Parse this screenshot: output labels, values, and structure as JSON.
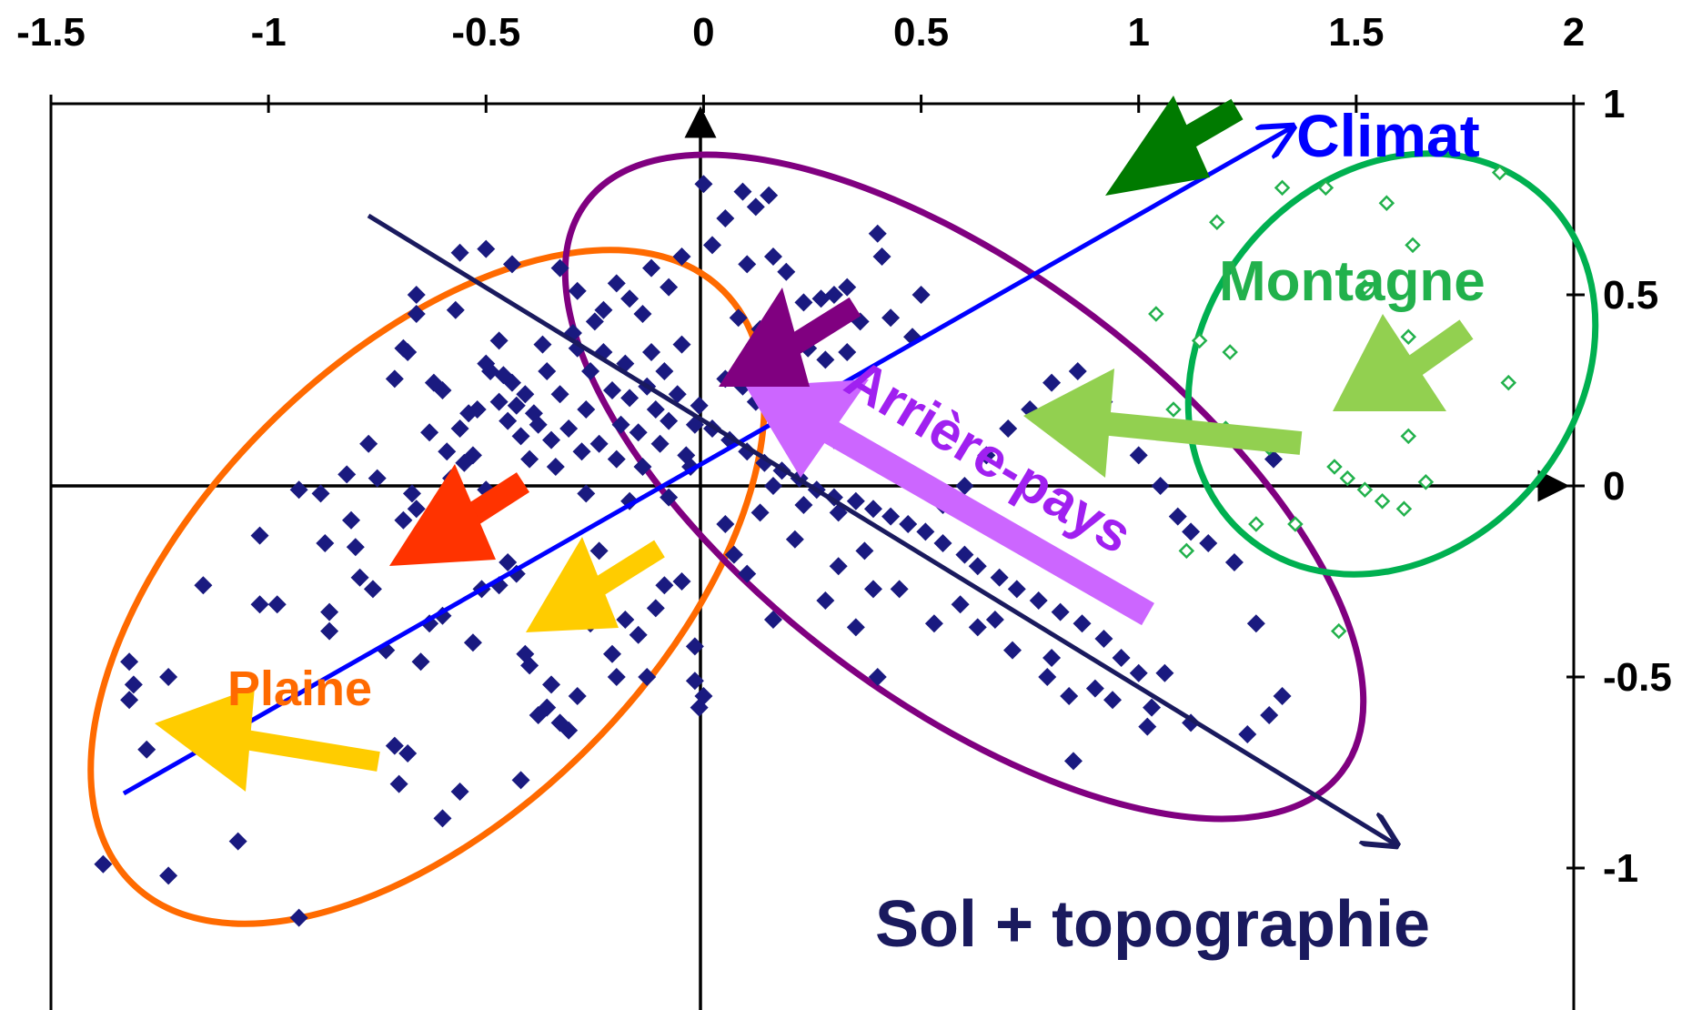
{
  "chart_data": {
    "type": "scatter",
    "title": "",
    "xlabel": "",
    "ylabel": "",
    "xlim": [
      -1.5,
      2
    ],
    "ylim": [
      -1.4,
      1
    ],
    "x_ticks": [
      -1.5,
      -1,
      -0.5,
      0,
      0.5,
      1,
      1.5,
      2
    ],
    "x_tick_labels": [
      "-1.5",
      "-1",
      "-0.5",
      "0",
      "0.5",
      "1",
      "1.5",
      "2"
    ],
    "y_ticks": [
      1,
      0.5,
      0,
      -0.5,
      -1
    ],
    "y_tick_labels": [
      "1",
      "0.5",
      "0",
      "-0.5",
      "-1"
    ],
    "x_axis_position": "top",
    "y_axis_position": "right",
    "grid": false,
    "series": [
      {
        "marker": "filled-diamond",
        "color": "#1a1a80",
        "points": [
          [
            -1.38,
            -0.99
          ],
          [
            -1.23,
            -1.02
          ],
          [
            -1.07,
            -0.93
          ],
          [
            -0.93,
            -1.13
          ],
          [
            -1.32,
            -0.56
          ],
          [
            -1.31,
            -0.52
          ],
          [
            -1.32,
            -0.46
          ],
          [
            -1.23,
            -0.5
          ],
          [
            -1.28,
            -0.69
          ],
          [
            -1.15,
            -0.26
          ],
          [
            -1.02,
            -0.13
          ],
          [
            -1.02,
            -0.31
          ],
          [
            -0.98,
            -0.31
          ],
          [
            -0.93,
            -0.01
          ],
          [
            -0.88,
            -0.02
          ],
          [
            -0.87,
            -0.15
          ],
          [
            -0.86,
            -0.33
          ],
          [
            -0.86,
            -0.38
          ],
          [
            -0.81,
            -0.09
          ],
          [
            -0.8,
            -0.16
          ],
          [
            -0.82,
            0.03
          ],
          [
            -0.79,
            -0.24
          ],
          [
            -0.76,
            -0.27
          ],
          [
            -0.73,
            -0.43
          ],
          [
            -0.71,
            -0.68
          ],
          [
            -0.69,
            -0.09
          ],
          [
            -0.67,
            -0.02
          ],
          [
            -0.66,
            -0.06
          ],
          [
            -0.65,
            -0.46
          ],
          [
            -0.7,
            -0.78
          ],
          [
            -0.68,
            -0.7
          ],
          [
            -0.63,
            -0.36
          ],
          [
            -0.6,
            -0.34
          ],
          [
            -0.6,
            -0.87
          ],
          [
            -0.56,
            -0.8
          ],
          [
            -0.53,
            -0.41
          ],
          [
            -0.51,
            -0.27
          ],
          [
            -0.47,
            -0.26
          ],
          [
            -0.45,
            -0.2
          ],
          [
            -0.43,
            -0.23
          ],
          [
            -0.41,
            -0.44
          ],
          [
            -0.4,
            -0.47
          ],
          [
            -0.38,
            -0.6
          ],
          [
            -0.35,
            -0.52
          ],
          [
            -0.31,
            -0.64
          ],
          [
            -0.29,
            -0.55
          ],
          [
            -0.27,
            -0.22
          ],
          [
            -0.26,
            -0.36
          ],
          [
            -0.24,
            -0.17
          ],
          [
            -0.21,
            -0.44
          ],
          [
            -0.2,
            -0.5
          ],
          [
            -0.18,
            -0.35
          ],
          [
            -0.15,
            -0.39
          ],
          [
            -0.13,
            -0.5
          ],
          [
            -0.11,
            -0.32
          ],
          [
            -0.09,
            -0.26
          ],
          [
            -0.05,
            -0.25
          ],
          [
            -0.02,
            -0.42
          ],
          [
            -0.02,
            -0.51
          ],
          [
            -0.01,
            -0.58
          ],
          [
            0.0,
            -0.55
          ],
          [
            -0.33,
            -0.62
          ],
          [
            -0.36,
            -0.58
          ],
          [
            -0.42,
            -0.77
          ],
          [
            -0.71,
            0.28
          ],
          [
            -0.69,
            0.36
          ],
          [
            -0.68,
            0.35
          ],
          [
            -0.66,
            0.45
          ],
          [
            -0.63,
            0.14
          ],
          [
            -0.62,
            0.27
          ],
          [
            -0.6,
            0.25
          ],
          [
            -0.59,
            0.09
          ],
          [
            -0.58,
            0.02
          ],
          [
            -0.56,
            0.15
          ],
          [
            -0.55,
            0.06
          ],
          [
            -0.54,
            0.19
          ],
          [
            -0.52,
            0.2
          ],
          [
            -0.5,
            0.32
          ],
          [
            -0.49,
            0.3
          ],
          [
            -0.47,
            0.22
          ],
          [
            -0.46,
            0.29
          ],
          [
            -0.45,
            0.17
          ],
          [
            -0.44,
            0.27
          ],
          [
            -0.43,
            0.21
          ],
          [
            -0.42,
            0.13
          ],
          [
            -0.41,
            0.24
          ],
          [
            -0.4,
            0.07
          ],
          [
            -0.39,
            0.19
          ],
          [
            -0.38,
            0.16
          ],
          [
            -0.37,
            0.37
          ],
          [
            -0.36,
            0.3
          ],
          [
            -0.35,
            0.12
          ],
          [
            -0.34,
            0.05
          ],
          [
            -0.33,
            0.24
          ],
          [
            -0.31,
            0.15
          ],
          [
            -0.3,
            0.4
          ],
          [
            -0.29,
            0.36
          ],
          [
            -0.28,
            0.09
          ],
          [
            -0.27,
            0.2
          ],
          [
            -0.26,
            0.3
          ],
          [
            -0.25,
            0.43
          ],
          [
            -0.24,
            0.11
          ],
          [
            -0.23,
            0.35
          ],
          [
            -0.21,
            0.25
          ],
          [
            -0.2,
            0.07
          ],
          [
            -0.19,
            0.16
          ],
          [
            -0.18,
            0.32
          ],
          [
            -0.17,
            0.23
          ],
          [
            -0.15,
            0.14
          ],
          [
            -0.14,
            0.05
          ],
          [
            -0.13,
            0.26
          ],
          [
            -0.12,
            0.35
          ],
          [
            -0.11,
            0.2
          ],
          [
            -0.1,
            0.11
          ],
          [
            -0.09,
            0.3
          ],
          [
            -0.08,
            0.17
          ],
          [
            -0.06,
            0.24
          ],
          [
            -0.05,
            0.37
          ],
          [
            -0.04,
            0.08
          ],
          [
            -0.03,
            0.05
          ],
          [
            -0.02,
            0.16
          ],
          [
            -0.01,
            0.21
          ],
          [
            -0.56,
            0.61
          ],
          [
            -0.5,
            0.62
          ],
          [
            -0.44,
            0.58
          ],
          [
            -0.57,
            0.46
          ],
          [
            -0.66,
            0.5
          ],
          [
            -0.33,
            0.57
          ],
          [
            -0.29,
            0.51
          ],
          [
            -0.2,
            0.53
          ],
          [
            -0.12,
            0.57
          ],
          [
            -0.05,
            0.6
          ],
          [
            -0.08,
            0.52
          ],
          [
            -0.14,
            0.45
          ],
          [
            -0.17,
            0.49
          ],
          [
            -0.23,
            0.46
          ],
          [
            -0.47,
            0.38
          ],
          [
            -0.53,
            0.08
          ],
          [
            -0.77,
            0.11
          ],
          [
            -0.75,
            0.02
          ],
          [
            -0.5,
            -0.01
          ],
          [
            -0.27,
            -0.02
          ],
          [
            -0.17,
            -0.04
          ],
          [
            -0.08,
            -0.03
          ],
          [
            0.0,
            0.79
          ],
          [
            0.05,
            0.7
          ],
          [
            0.09,
            0.77
          ],
          [
            0.12,
            0.73
          ],
          [
            0.15,
            0.76
          ],
          [
            0.02,
            0.63
          ],
          [
            0.1,
            0.58
          ],
          [
            0.16,
            0.6
          ],
          [
            0.19,
            0.56
          ],
          [
            0.23,
            0.48
          ],
          [
            0.27,
            0.49
          ],
          [
            0.3,
            0.5
          ],
          [
            0.33,
            0.52
          ],
          [
            0.08,
            0.44
          ],
          [
            0.13,
            0.41
          ],
          [
            0.2,
            0.38
          ],
          [
            0.24,
            0.36
          ],
          [
            0.28,
            0.33
          ],
          [
            0.33,
            0.35
          ],
          [
            0.36,
            0.43
          ],
          [
            0.4,
            0.66
          ],
          [
            0.41,
            0.6
          ],
          [
            0.43,
            0.44
          ],
          [
            0.48,
            0.39
          ],
          [
            0.5,
            0.5
          ],
          [
            0.05,
            0.28
          ],
          [
            0.09,
            0.26
          ],
          [
            0.12,
            0.22
          ],
          [
            0.16,
            0.19
          ],
          [
            0.2,
            0.16
          ],
          [
            0.25,
            0.14
          ],
          [
            0.3,
            0.12
          ],
          [
            0.35,
            0.1
          ],
          [
            0.4,
            0.08
          ],
          [
            0.45,
            0.05
          ],
          [
            0.02,
            0.15
          ],
          [
            0.06,
            0.12
          ],
          [
            0.1,
            0.09
          ],
          [
            0.14,
            0.06
          ],
          [
            0.18,
            0.04
          ],
          [
            0.22,
            0.02
          ],
          [
            0.26,
            -0.01
          ],
          [
            0.3,
            -0.03
          ],
          [
            0.35,
            -0.04
          ],
          [
            0.39,
            -0.06
          ],
          [
            0.43,
            -0.08
          ],
          [
            0.47,
            -0.1
          ],
          [
            0.51,
            -0.12
          ],
          [
            0.55,
            -0.15
          ],
          [
            0.6,
            -0.18
          ],
          [
            0.63,
            -0.21
          ],
          [
            0.68,
            -0.24
          ],
          [
            0.72,
            -0.27
          ],
          [
            0.77,
            -0.3
          ],
          [
            0.82,
            -0.33
          ],
          [
            0.87,
            -0.36
          ],
          [
            0.92,
            -0.4
          ],
          [
            0.96,
            -0.45
          ],
          [
            1.0,
            -0.49
          ],
          [
            1.03,
            -0.58
          ],
          [
            1.02,
            -0.63
          ],
          [
            0.9,
            -0.53
          ],
          [
            0.84,
            -0.55
          ],
          [
            0.79,
            -0.5
          ],
          [
            0.85,
            -0.72
          ],
          [
            0.71,
            -0.43
          ],
          [
            0.63,
            -0.37
          ],
          [
            0.53,
            -0.36
          ],
          [
            0.4,
            -0.5
          ],
          [
            0.35,
            -0.37
          ],
          [
            0.28,
            -0.3
          ],
          [
            0.16,
            -0.35
          ],
          [
            0.1,
            -0.23
          ],
          [
            0.07,
            -0.18
          ],
          [
            0.05,
            -0.1
          ],
          [
            0.13,
            -0.07
          ],
          [
            0.21,
            -0.14
          ],
          [
            0.31,
            -0.21
          ],
          [
            0.39,
            -0.27
          ],
          [
            0.55,
            -0.05
          ],
          [
            0.6,
            0.0
          ],
          [
            0.65,
            0.08
          ],
          [
            0.7,
            0.15
          ],
          [
            0.75,
            0.2
          ],
          [
            0.8,
            0.27
          ],
          [
            0.86,
            0.3
          ],
          [
            0.92,
            0.22
          ],
          [
            0.96,
            0.16
          ],
          [
            1.0,
            0.08
          ],
          [
            1.05,
            0.0
          ],
          [
            1.09,
            -0.08
          ],
          [
            1.12,
            -0.12
          ],
          [
            1.16,
            -0.15
          ],
          [
            1.22,
            -0.2
          ],
          [
            1.27,
            -0.36
          ],
          [
            1.31,
            0.07
          ],
          [
            1.33,
            -0.55
          ],
          [
            1.3,
            -0.6
          ],
          [
            1.25,
            -0.65
          ],
          [
            1.12,
            -0.62
          ],
          [
            1.06,
            -0.49
          ],
          [
            0.94,
            -0.56
          ],
          [
            0.8,
            -0.45
          ],
          [
            0.67,
            -0.35
          ],
          [
            0.59,
            -0.31
          ],
          [
            0.45,
            -0.27
          ],
          [
            0.37,
            -0.17
          ],
          [
            0.31,
            -0.07
          ],
          [
            0.23,
            -0.05
          ],
          [
            0.16,
            0.0
          ]
        ]
      },
      {
        "marker": "open-diamond",
        "color": "#22b14c",
        "points": [
          [
            1.18,
            0.69
          ],
          [
            1.33,
            0.78
          ],
          [
            1.43,
            0.78
          ],
          [
            1.57,
            0.74
          ],
          [
            1.63,
            0.63
          ],
          [
            1.83,
            0.82
          ],
          [
            1.52,
            0.52
          ],
          [
            1.62,
            0.39
          ],
          [
            1.04,
            0.45
          ],
          [
            1.14,
            0.38
          ],
          [
            1.21,
            0.35
          ],
          [
            1.08,
            0.2
          ],
          [
            1.2,
            0.15
          ],
          [
            1.3,
            0.1
          ],
          [
            1.45,
            0.05
          ],
          [
            1.48,
            0.02
          ],
          [
            1.52,
            -0.01
          ],
          [
            1.56,
            -0.04
          ],
          [
            1.61,
            -0.06
          ],
          [
            1.66,
            0.01
          ],
          [
            1.62,
            0.13
          ],
          [
            1.85,
            0.27
          ],
          [
            1.27,
            -0.1
          ],
          [
            1.36,
            -0.1
          ],
          [
            1.11,
            -0.17
          ],
          [
            1.46,
            -0.38
          ]
        ]
      }
    ],
    "vectors": [
      {
        "name": "Climat",
        "from": [
          -1.33,
          -0.82
        ],
        "to": [
          1.37,
          0.93
        ],
        "color": "#0000ff"
      },
      {
        "name": "Sol + topographie",
        "from": [
          -0.76,
          0.71
        ],
        "to": [
          1.6,
          -0.93
        ],
        "color": "#1a1a5e"
      }
    ],
    "groups": [
      {
        "name": "Plaine",
        "color": "#ff6a00"
      },
      {
        "name": "Arrière-pays",
        "color": "#800080"
      },
      {
        "name": "Montagne",
        "color": "#00b050"
      }
    ],
    "annotations": {
      "climat": {
        "text": "Climat",
        "color": "#0000ff"
      },
      "montagne": {
        "text": "Montagne",
        "color": "#22b14c"
      },
      "arriere_pays": {
        "text": "Arrière-pays",
        "color": "#a020f0"
      },
      "plaine": {
        "text": "Plaine",
        "color": "#ff6a00"
      },
      "sol_topographie": {
        "text": "Sol + topographie",
        "color": "#1a1a5e"
      }
    }
  }
}
